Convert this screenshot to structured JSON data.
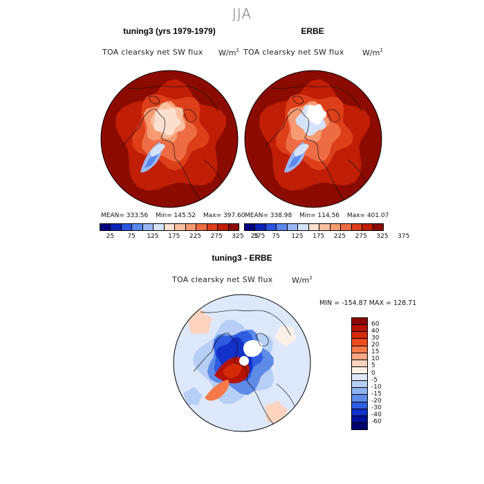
{
  "figure": {
    "season": "JJA",
    "panels": [
      {
        "title": "tuning3 (yrs 1979-1979)",
        "label": "TOA clearsky net SW flux",
        "units": "W/m",
        "units_exp": "2",
        "stats": [
          {
            "label": "MEAN=",
            "value": "333.56"
          },
          {
            "label": "Min=",
            "value": "145.52"
          },
          {
            "label": "Max=",
            "value": "397.60"
          }
        ],
        "colorbar_ticks": [
          "25",
          "75",
          "125",
          "175",
          "225",
          "275",
          "325",
          "375"
        ]
      },
      {
        "title": "ERBE",
        "label": "TOA clearsky net SW flux",
        "units": "W/m",
        "units_exp": "2",
        "stats": [
          {
            "label": "MEAN=",
            "value": "338.98"
          },
          {
            "label": "Min=",
            "value": "114.56"
          },
          {
            "label": "Max=",
            "value": "401.07"
          }
        ],
        "colorbar_ticks": [
          "25",
          "75",
          "125",
          "175",
          "225",
          "275",
          "325",
          "375"
        ]
      },
      {
        "title": "tuning3 - ERBE",
        "label": "TOA clearsky net SW flux",
        "units": "W/m",
        "units_exp": "2",
        "minmax": "MIN = -154.87 MAX = 128.71",
        "colorbar_ticks": [
          "60",
          "40",
          "30",
          "20",
          "15",
          "10",
          "5",
          "0",
          "-5",
          "-10",
          "-15",
          "-20",
          "-30",
          "-40",
          "-60"
        ]
      }
    ]
  },
  "colors": {
    "abs_scale": [
      "#00007e",
      "#0a24b8",
      "#2b55e0",
      "#5b88ef",
      "#9ab7f6",
      "#d4e2fb",
      "#fbe0d0",
      "#f9c0a0",
      "#f69a72",
      "#ee6c43",
      "#dc3f1a",
      "#c01e05",
      "#8c0b00"
    ],
    "diff_scale": [
      "#8a0a00",
      "#b51300",
      "#d52a08",
      "#ee4b1e",
      "#f57a4a",
      "#f8a784",
      "#fbd3bf",
      "#fdf0e6",
      "#dde9fb",
      "#b7cff6",
      "#8eb2f0",
      "#5e8ae8",
      "#2f5ce0",
      "#1231c8",
      "#02109a",
      "#00006e"
    ]
  }
}
